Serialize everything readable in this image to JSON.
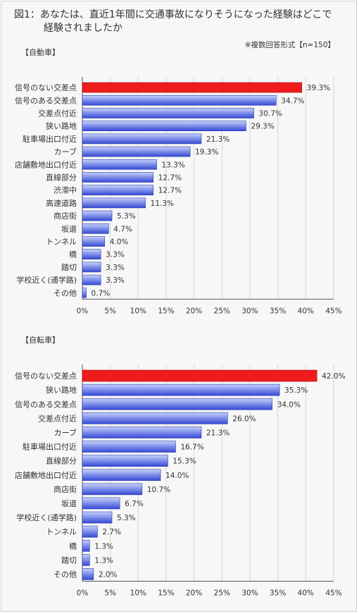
{
  "title_line1": "図1：あなたは、直近1年間に交通事故になりそうになった経験はどこで",
  "title_line2": "経験されましたか",
  "note": "※複数回答形式【n=150】",
  "colors": {
    "highlight": "#ee1c1c",
    "bar_light": "#c6d2fb",
    "bar_dark": "#3549d6",
    "axis": "#555555",
    "grid": "#d6d6d6"
  },
  "chart_data": [
    {
      "type": "bar",
      "orientation": "horizontal",
      "title": "【自動車】",
      "categories": [
        "信号のない交差点",
        "信号のある交差点",
        "交差点付近",
        "狭い路地",
        "駐車場出口付近",
        "カーブ",
        "店舗敷地出口付近",
        "直線部分",
        "渋滞中",
        "高速道路",
        "商店街",
        "坂道",
        "トンネル",
        "橋",
        "踏切",
        "学校近く(通学路)",
        "その他"
      ],
      "values": [
        39.3,
        34.7,
        30.7,
        29.3,
        21.3,
        19.3,
        13.3,
        12.7,
        12.7,
        11.3,
        5.3,
        4.7,
        4.0,
        3.3,
        3.3,
        3.3,
        0.7
      ],
      "value_labels": [
        "39.3%",
        "34.7%",
        "30.7%",
        "29.3%",
        "21.3%",
        "19.3%",
        "13.3%",
        "12.7%",
        "12.7%",
        "11.3%",
        "5.3%",
        "4.7%",
        "4.0%",
        "3.3%",
        "3.3%",
        "3.3%",
        "0.7%"
      ],
      "highlight_index": 0,
      "xlim": [
        0,
        45
      ],
      "xticks": [
        "0%",
        "5%",
        "10%",
        "15%",
        "20%",
        "25%",
        "30%",
        "35%",
        "40%",
        "45%"
      ],
      "grid": true
    },
    {
      "type": "bar",
      "orientation": "horizontal",
      "title": "【自転車】",
      "categories": [
        "信号のない交差点",
        "狭い路地",
        "信号のある交差点",
        "交差点付近",
        "カーブ",
        "駐車場出口付近",
        "直線部分",
        "店舗敷地出口付近",
        "商店街",
        "坂道",
        "学校近く(通学路)",
        "トンネル",
        "橋",
        "踏切",
        "その他"
      ],
      "values": [
        42.0,
        35.3,
        34.0,
        26.0,
        21.3,
        16.7,
        15.3,
        14.0,
        10.7,
        6.7,
        5.3,
        2.7,
        1.3,
        1.3,
        2.0
      ],
      "value_labels": [
        "42.0%",
        "35.3%",
        "34.0%",
        "26.0%",
        "21.3%",
        "16.7%",
        "15.3%",
        "14.0%",
        "10.7%",
        "6.7%",
        "5.3%",
        "2.7%",
        "1.3%",
        "1.3%",
        "2.0%"
      ],
      "highlight_index": 0,
      "xlim": [
        0,
        45
      ],
      "xticks": [
        "0%",
        "5%",
        "10%",
        "15%",
        "20%",
        "25%",
        "30%",
        "35%",
        "40%",
        "45%"
      ],
      "grid": true
    }
  ]
}
